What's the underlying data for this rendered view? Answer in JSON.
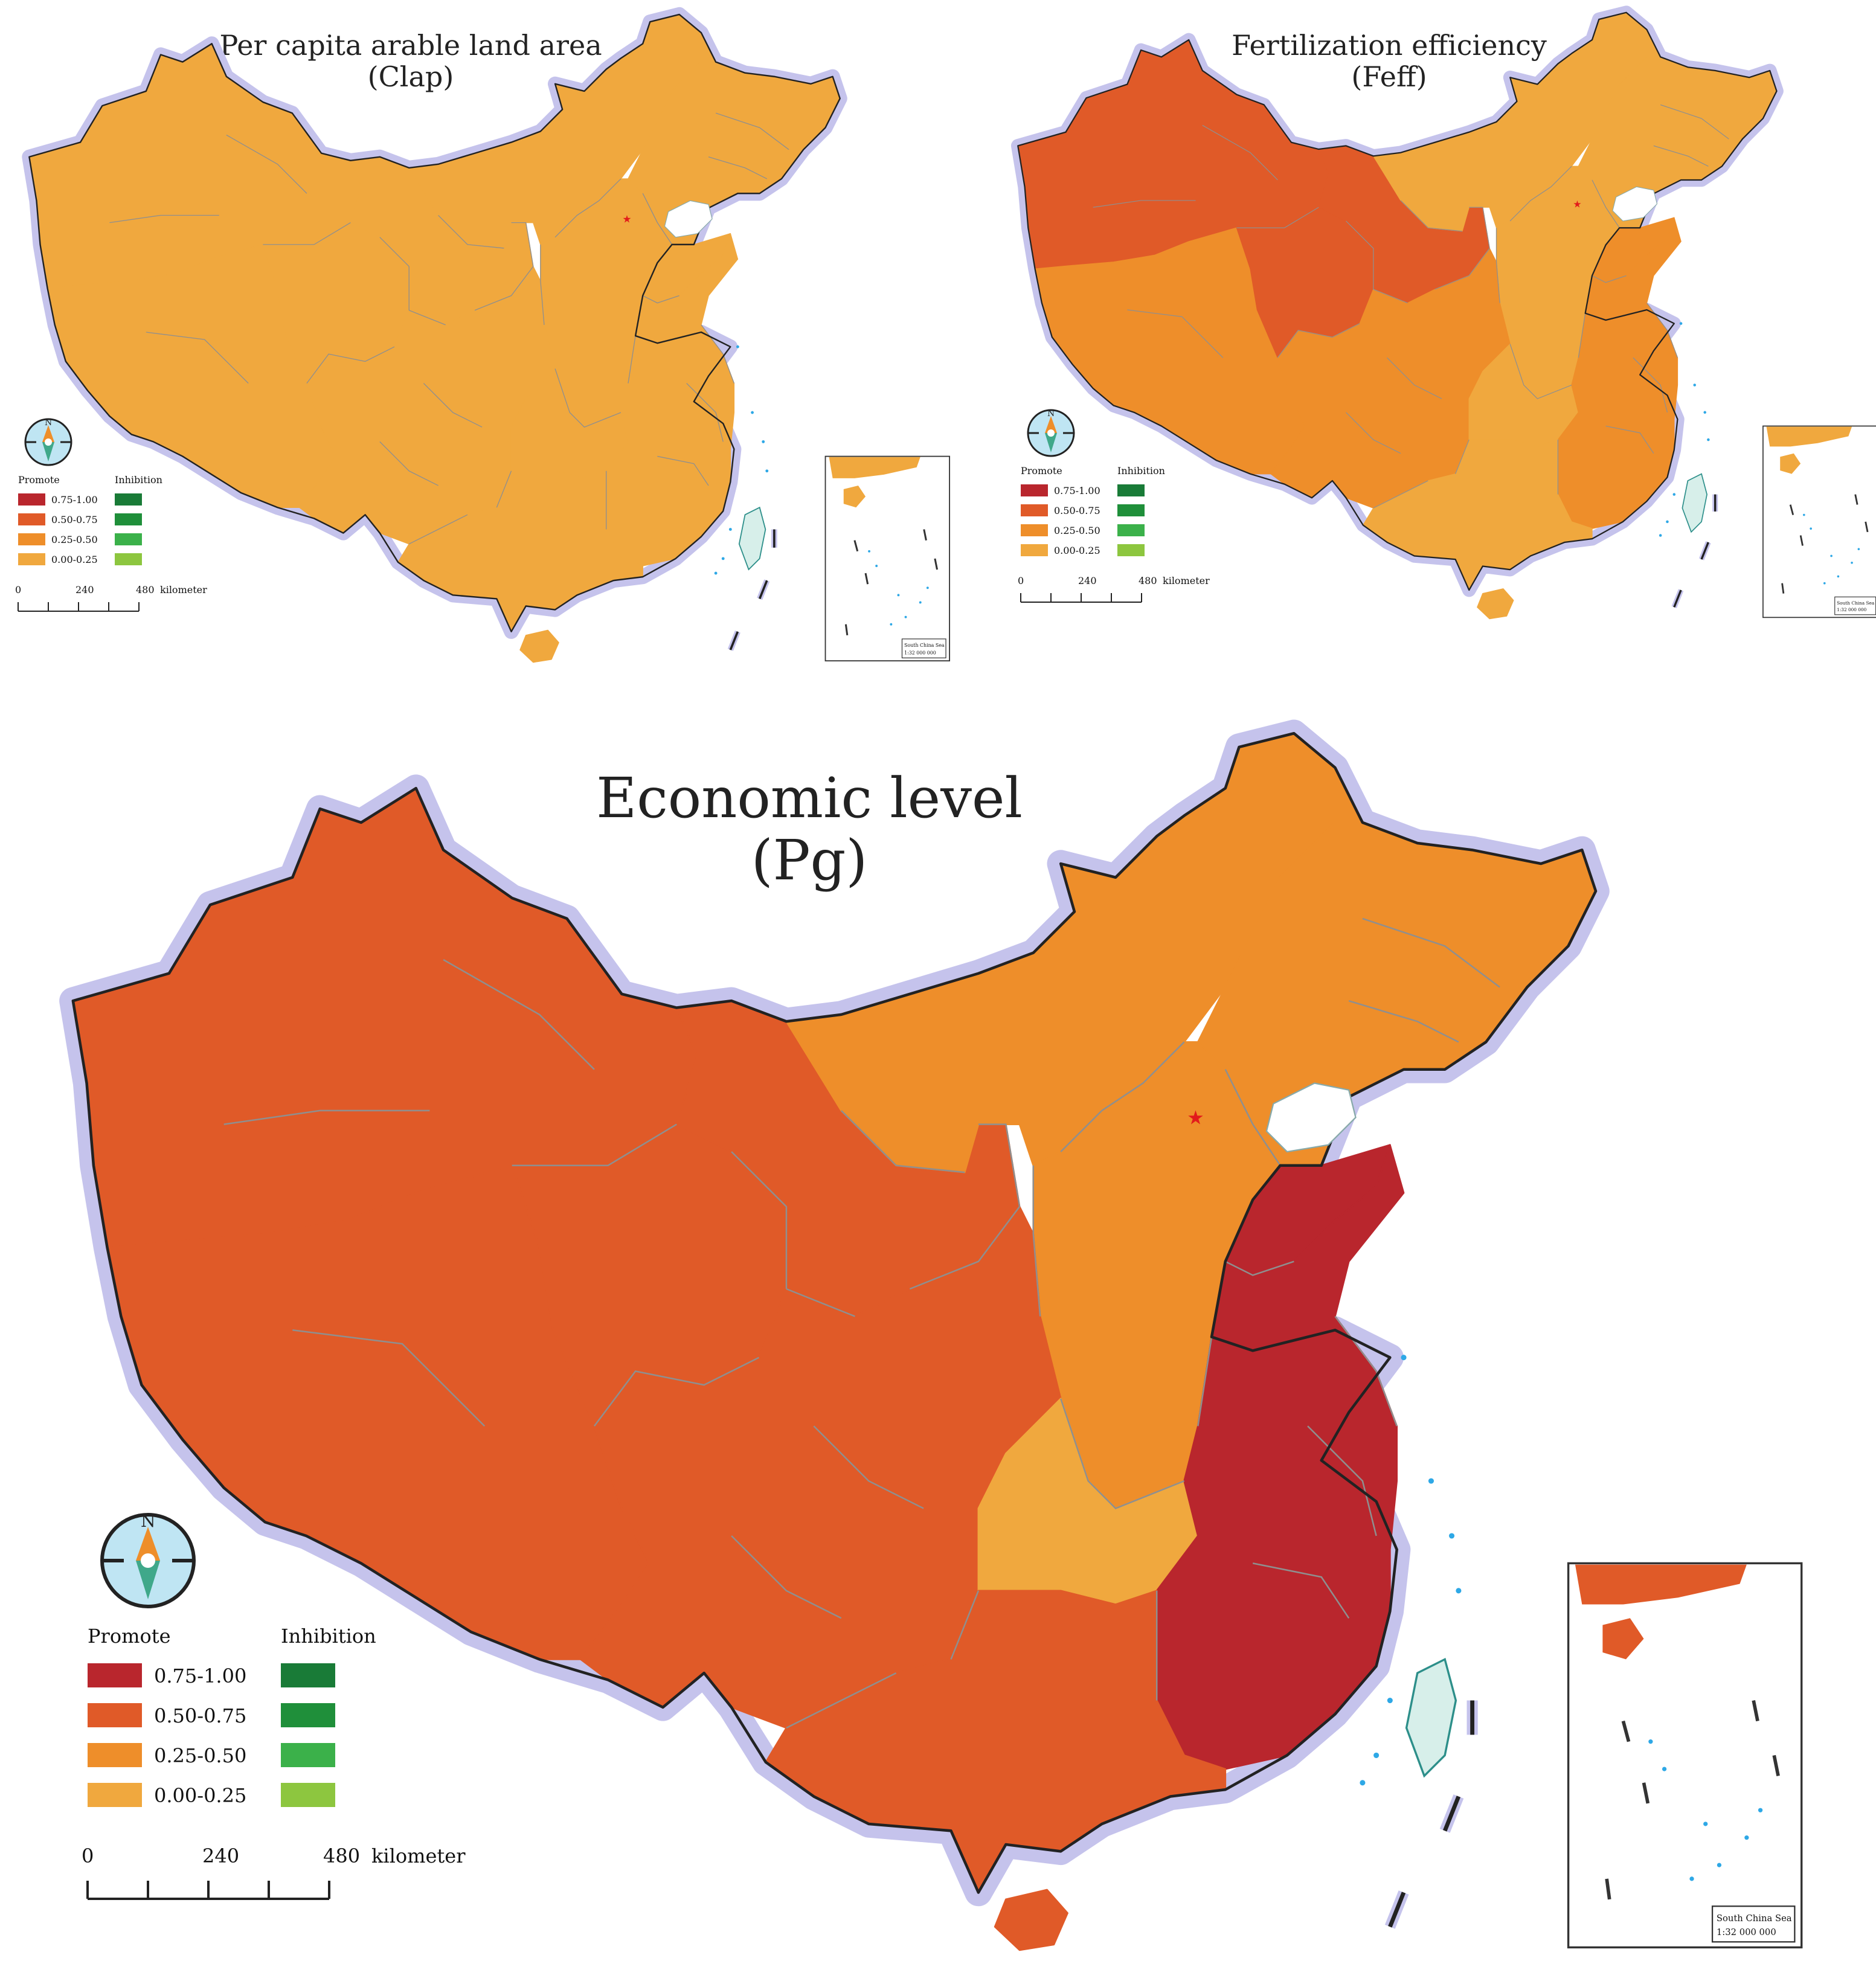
{
  "legend_headers": {
    "promote": "Promote",
    "inhibition": "Inhibition"
  },
  "legend_ranges": [
    "0.75-1.00",
    "0.50-0.75",
    "0.25-0.50",
    "0.00-0.25"
  ],
  "promote_colors": [
    "#B9262D",
    "#E05A28",
    "#EE8E2A",
    "#F0A83E"
  ],
  "inhibition_colors": [
    "#197B37",
    "#1F8F3A",
    "#3BB14A",
    "#8DC63F"
  ],
  "scale_bar": {
    "ticks": [
      "0",
      "240",
      "480"
    ],
    "unit": "kilometer"
  },
  "compass_label": "N",
  "inset": {
    "label": "South China Sea",
    "scale": "1:32 000 000"
  },
  "colors": {
    "coast_halo": "#C5C3EC",
    "border": "#8F8F8F",
    "taiwan": "#D7EFEA",
    "island_dots": "#2EA8E6",
    "compass_face": "#BFE5F3",
    "beijing_star": "#E21B1B"
  },
  "maps": [
    {
      "id": "clap",
      "title": "Per capita arable land area",
      "subtitle": "(Clap)",
      "region_classes": {
        "xinjiang": 3,
        "tibet": 3,
        "qinghai": 3,
        "gansu": 3,
        "inner_mongolia": 3,
        "northeast": 3,
        "north_central": 3,
        "shandong": 3,
        "southwest": 3,
        "central": 3,
        "east": 3,
        "south": 3,
        "hainan": 3
      }
    },
    {
      "id": "feff",
      "title": "Fertilization efficiency",
      "subtitle": "(Feff)",
      "region_classes": {
        "xinjiang": 1,
        "tibet": 2,
        "qinghai": 1,
        "gansu": 1,
        "inner_mongolia": 3,
        "northeast": 3,
        "north_central": 3,
        "shandong": 2,
        "southwest": 2,
        "central": 3,
        "east": 2,
        "south": 3,
        "hainan": 3
      }
    },
    {
      "id": "pg",
      "title": "Economic level",
      "subtitle": "(Pg)",
      "region_classes": {
        "xinjiang": 1,
        "tibet": 1,
        "qinghai": 1,
        "gansu": 1,
        "inner_mongolia": 2,
        "northeast": 2,
        "north_central": 2,
        "shandong": 0,
        "southwest": 1,
        "central": 3,
        "east": 0,
        "south": 1,
        "hainan": 1
      }
    }
  ]
}
